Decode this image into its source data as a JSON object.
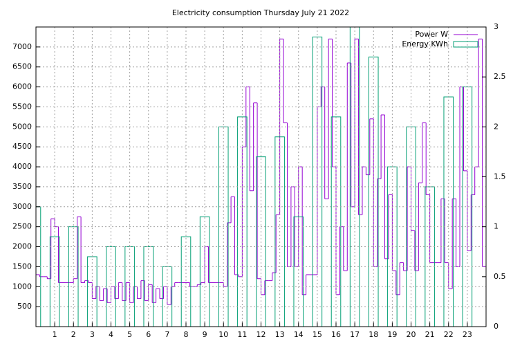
{
  "chart_data": {
    "type": "line",
    "title": "Electricity consumption Thursday July 21 2022",
    "xlim": [
      0,
      24
    ],
    "xticks": [
      1,
      2,
      3,
      4,
      5,
      6,
      7,
      8,
      9,
      10,
      11,
      12,
      13,
      14,
      15,
      16,
      17,
      18,
      19,
      20,
      21,
      22,
      23
    ],
    "ylim": [
      0,
      7500
    ],
    "yticks": [
      500,
      1000,
      1500,
      2000,
      2500,
      3000,
      3500,
      4000,
      4500,
      5000,
      5500,
      6000,
      6500,
      7000
    ],
    "y2lim": [
      0,
      3
    ],
    "y2ticks": [
      0,
      0.5,
      1,
      1.5,
      2,
      2.5,
      3
    ],
    "grid": true,
    "legend": "top-right",
    "series": [
      {
        "name": "Power W",
        "color": "#9400d3",
        "style": "steps",
        "x": [
          0,
          0.2,
          0.4,
          0.6,
          0.8,
          1,
          1.2,
          1.4,
          1.6,
          1.8,
          2,
          2.2,
          2.4,
          2.6,
          2.8,
          3,
          3.2,
          3.4,
          3.6,
          3.8,
          4,
          4.2,
          4.4,
          4.6,
          4.8,
          5,
          5.2,
          5.4,
          5.6,
          5.8,
          6,
          6.2,
          6.4,
          6.6,
          6.8,
          7,
          7.2,
          7.4,
          7.6,
          7.8,
          8,
          8.2,
          8.4,
          8.6,
          8.8,
          9,
          9.2,
          9.4,
          9.6,
          9.8,
          10,
          10.2,
          10.4,
          10.6,
          10.8,
          11,
          11.2,
          11.4,
          11.6,
          11.8,
          12,
          12.2,
          12.4,
          12.6,
          12.8,
          13,
          13.2,
          13.4,
          13.6,
          13.8,
          14,
          14.2,
          14.4,
          14.6,
          14.8,
          15,
          15.2,
          15.4,
          15.6,
          15.8,
          16,
          16.2,
          16.4,
          16.6,
          16.8,
          17,
          17.2,
          17.4,
          17.6,
          17.8,
          18,
          18.2,
          18.4,
          18.6,
          18.8,
          19,
          19.2,
          19.4,
          19.6,
          19.8,
          20,
          20.2,
          20.4,
          20.6,
          20.8,
          21,
          21.2,
          21.4,
          21.6,
          21.8,
          22,
          22.2,
          22.4,
          22.6,
          22.8,
          23,
          23.2,
          23.4,
          23.6,
          23.8
        ],
        "values": [
          1300,
          1250,
          1250,
          1200,
          2700,
          2500,
          1100,
          1100,
          1100,
          1100,
          1200,
          2750,
          1100,
          1150,
          1100,
          700,
          1000,
          650,
          950,
          600,
          1000,
          700,
          1100,
          650,
          1100,
          600,
          1000,
          700,
          1150,
          650,
          1050,
          600,
          950,
          700,
          1000,
          550,
          1000,
          1100,
          1100,
          1100,
          1100,
          1000,
          1000,
          1050,
          1100,
          2000,
          1100,
          1100,
          1100,
          1100,
          1000,
          2600,
          3250,
          1300,
          1250,
          4500,
          6000,
          3400,
          5600,
          1200,
          800,
          1150,
          1150,
          1350,
          2800,
          7200,
          5100,
          1500,
          3500,
          1500,
          4000,
          800,
          1300,
          1300,
          1300,
          5500,
          6000,
          3200,
          7200,
          4000,
          800,
          2500,
          1400,
          6600,
          3000,
          7200,
          2800,
          4000,
          3800,
          5200,
          1500,
          3700,
          5300,
          1700,
          3300,
          1400,
          800,
          1600,
          1400,
          4000,
          2400,
          1400,
          3600,
          5100,
          3300,
          1600,
          1600,
          1600,
          3200,
          1600,
          950,
          3200,
          1500,
          6000,
          3900,
          1900,
          3300,
          4000,
          7200,
          1500
        ]
      },
      {
        "name": "Energy KWh",
        "color": "#009e73",
        "style": "boxes",
        "axis": "y2",
        "x": [
          0,
          1,
          2,
          3,
          4,
          5,
          6,
          7,
          8,
          9,
          10,
          11,
          12,
          13,
          14,
          15,
          16,
          17,
          18,
          19,
          20,
          21,
          22,
          23
        ],
        "values": [
          1.2,
          0.9,
          1.0,
          0.7,
          0.8,
          0.8,
          0.8,
          0.6,
          0.9,
          1.1,
          2.0,
          2.1,
          1.7,
          1.9,
          1.1,
          2.9,
          2.1,
          3.0,
          2.7,
          1.6,
          2.0,
          1.4,
          2.3,
          2.4
        ]
      }
    ]
  }
}
